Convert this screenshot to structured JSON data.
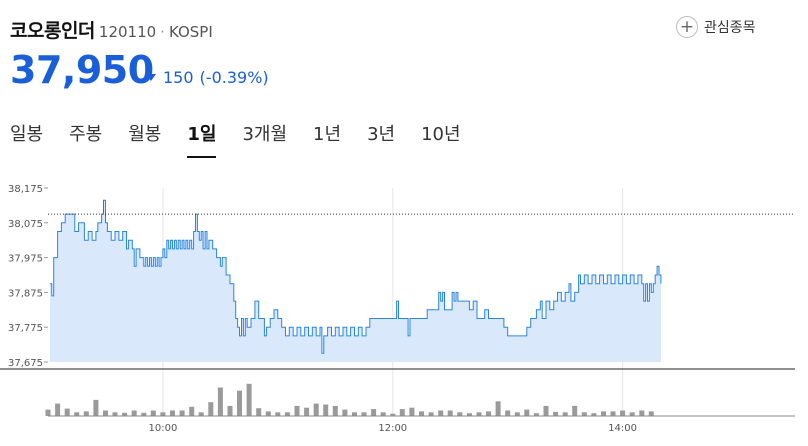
{
  "stock": {
    "name": "코오롱인더",
    "code": "120110",
    "separator": "·",
    "exchange": "KOSPI",
    "price": "37,950",
    "change_amount": "150",
    "change_percent": "(-0.39%)",
    "direction": "down",
    "down_color": "#1a5fd8"
  },
  "watch_button": {
    "label": "관심종목",
    "icon": "plus-icon"
  },
  "tabs": [
    {
      "label": "일봉",
      "active": false
    },
    {
      "label": "주봉",
      "active": false
    },
    {
      "label": "월봉",
      "active": false
    },
    {
      "label": "1일",
      "active": true
    },
    {
      "label": "3개월",
      "active": false
    },
    {
      "label": "1년",
      "active": false
    },
    {
      "label": "3년",
      "active": false
    },
    {
      "label": "10년",
      "active": false
    }
  ],
  "chart_data": {
    "type": "area",
    "ylim": [
      37675,
      38175
    ],
    "y_ticks": [
      "38,175",
      "38,075",
      "37,975",
      "37,875",
      "37,775",
      "37,675"
    ],
    "x_ticks": [
      "10:00",
      "12:00",
      "14:00"
    ],
    "x_range": [
      "09:00",
      "15:30"
    ],
    "reference_price": 38100,
    "grid": true,
    "line_color": "#2a86e0",
    "fill_color": "#d9e9fb",
    "up_color": "#e0334b",
    "volume_color": "#9a9a9a",
    "volume_ylim": [
      0,
      100
    ],
    "price_series": [
      {
        "t": "09:01",
        "p": 37900
      },
      {
        "t": "09:02",
        "p": 37865
      },
      {
        "t": "09:03",
        "p": 37975
      },
      {
        "t": "09:05",
        "p": 38050
      },
      {
        "t": "09:07",
        "p": 38075
      },
      {
        "t": "09:09",
        "p": 38100
      },
      {
        "t": "09:12",
        "p": 38100
      },
      {
        "t": "09:14",
        "p": 38050
      },
      {
        "t": "09:16",
        "p": 38075
      },
      {
        "t": "09:17",
        "p": 38075
      },
      {
        "t": "09:19",
        "p": 38025
      },
      {
        "t": "09:21",
        "p": 38050
      },
      {
        "t": "09:23",
        "p": 38025
      },
      {
        "t": "09:25",
        "p": 38050
      },
      {
        "t": "09:26",
        "p": 38075
      },
      {
        "t": "09:27",
        "p": 38075
      },
      {
        "t": "09:28",
        "p": 38100
      },
      {
        "t": "09:29",
        "p": 38140
      },
      {
        "t": "09:30",
        "p": 38075
      },
      {
        "t": "09:31",
        "p": 38050
      },
      {
        "t": "09:33",
        "p": 38025
      },
      {
        "t": "09:35",
        "p": 38050
      },
      {
        "t": "09:37",
        "p": 38025
      },
      {
        "t": "09:39",
        "p": 38050
      },
      {
        "t": "09:41",
        "p": 38000
      },
      {
        "t": "09:42",
        "p": 38025
      },
      {
        "t": "09:44",
        "p": 38000
      },
      {
        "t": "09:45",
        "p": 37950
      },
      {
        "t": "09:46",
        "p": 38000
      },
      {
        "t": "09:48",
        "p": 37975
      },
      {
        "t": "09:50",
        "p": 37950
      },
      {
        "t": "09:51",
        "p": 37975
      },
      {
        "t": "09:52",
        "p": 37950
      },
      {
        "t": "09:53",
        "p": 37975
      },
      {
        "t": "09:54",
        "p": 37950
      },
      {
        "t": "09:55",
        "p": 37975
      },
      {
        "t": "09:56",
        "p": 37950
      },
      {
        "t": "09:57",
        "p": 37975
      },
      {
        "t": "09:58",
        "p": 37950
      },
      {
        "t": "09:59",
        "p": 37975
      },
      {
        "t": "10:00",
        "p": 38000
      },
      {
        "t": "10:01",
        "p": 37975
      },
      {
        "t": "10:02",
        "p": 38025
      },
      {
        "t": "10:03",
        "p": 38000
      },
      {
        "t": "10:04",
        "p": 38025
      },
      {
        "t": "10:05",
        "p": 38000
      },
      {
        "t": "10:06",
        "p": 38025
      },
      {
        "t": "10:07",
        "p": 38000
      },
      {
        "t": "10:08",
        "p": 38025
      },
      {
        "t": "10:09",
        "p": 38000
      },
      {
        "t": "10:10",
        "p": 38025
      },
      {
        "t": "10:11",
        "p": 38000
      },
      {
        "t": "10:12",
        "p": 38025
      },
      {
        "t": "10:13",
        "p": 38000
      },
      {
        "t": "10:14",
        "p": 38025
      },
      {
        "t": "10:15",
        "p": 38000
      },
      {
        "t": "10:16",
        "p": 38050
      },
      {
        "t": "10:17",
        "p": 38100
      },
      {
        "t": "10:18",
        "p": 38050
      },
      {
        "t": "10:19",
        "p": 38025
      },
      {
        "t": "10:20",
        "p": 38050
      },
      {
        "t": "10:21",
        "p": 38000
      },
      {
        "t": "10:22",
        "p": 38050
      },
      {
        "t": "10:23",
        "p": 38000
      },
      {
        "t": "10:24",
        "p": 38025
      },
      {
        "t": "10:26",
        "p": 38000
      },
      {
        "t": "10:28",
        "p": 37975
      },
      {
        "t": "10:30",
        "p": 37950
      },
      {
        "t": "10:31",
        "p": 37975
      },
      {
        "t": "10:33",
        "p": 37925
      },
      {
        "t": "10:35",
        "p": 37900
      },
      {
        "t": "10:37",
        "p": 37850
      },
      {
        "t": "10:38",
        "p": 37800
      },
      {
        "t": "10:39",
        "p": 37775
      },
      {
        "t": "10:40",
        "p": 37750
      },
      {
        "t": "10:41",
        "p": 37800
      },
      {
        "t": "10:42",
        "p": 37750
      },
      {
        "t": "10:43",
        "p": 37800
      },
      {
        "t": "10:44",
        "p": 37775
      },
      {
        "t": "10:46",
        "p": 37800
      },
      {
        "t": "10:48",
        "p": 37850
      },
      {
        "t": "10:50",
        "p": 37800
      },
      {
        "t": "10:52",
        "p": 37800
      },
      {
        "t": "10:53",
        "p": 37750
      },
      {
        "t": "10:54",
        "p": 37775
      },
      {
        "t": "10:56",
        "p": 37800
      },
      {
        "t": "10:58",
        "p": 37825
      },
      {
        "t": "11:00",
        "p": 37800
      },
      {
        "t": "11:02",
        "p": 37775
      },
      {
        "t": "11:04",
        "p": 37750
      },
      {
        "t": "11:06",
        "p": 37775
      },
      {
        "t": "11:08",
        "p": 37750
      },
      {
        "t": "11:10",
        "p": 37775
      },
      {
        "t": "11:12",
        "p": 37750
      },
      {
        "t": "11:14",
        "p": 37775
      },
      {
        "t": "11:16",
        "p": 37750
      },
      {
        "t": "11:18",
        "p": 37775
      },
      {
        "t": "11:20",
        "p": 37750
      },
      {
        "t": "11:22",
        "p": 37775
      },
      {
        "t": "11:23",
        "p": 37700
      },
      {
        "t": "11:24",
        "p": 37750
      },
      {
        "t": "11:26",
        "p": 37775
      },
      {
        "t": "11:28",
        "p": 37750
      },
      {
        "t": "11:30",
        "p": 37775
      },
      {
        "t": "11:32",
        "p": 37750
      },
      {
        "t": "11:34",
        "p": 37775
      },
      {
        "t": "11:36",
        "p": 37750
      },
      {
        "t": "11:38",
        "p": 37775
      },
      {
        "t": "11:40",
        "p": 37750
      },
      {
        "t": "11:42",
        "p": 37775
      },
      {
        "t": "11:44",
        "p": 37750
      },
      {
        "t": "11:46",
        "p": 37775
      },
      {
        "t": "11:48",
        "p": 37800
      },
      {
        "t": "11:52",
        "p": 37800
      },
      {
        "t": "11:56",
        "p": 37800
      },
      {
        "t": "12:00",
        "p": 37800
      },
      {
        "t": "12:02",
        "p": 37850
      },
      {
        "t": "12:03",
        "p": 37800
      },
      {
        "t": "12:06",
        "p": 37800
      },
      {
        "t": "12:08",
        "p": 37750
      },
      {
        "t": "12:09",
        "p": 37800
      },
      {
        "t": "12:12",
        "p": 37800
      },
      {
        "t": "12:16",
        "p": 37800
      },
      {
        "t": "12:18",
        "p": 37825
      },
      {
        "t": "12:22",
        "p": 37825
      },
      {
        "t": "12:24",
        "p": 37875
      },
      {
        "t": "12:25",
        "p": 37850
      },
      {
        "t": "12:26",
        "p": 37875
      },
      {
        "t": "12:27",
        "p": 37825
      },
      {
        "t": "12:30",
        "p": 37825
      },
      {
        "t": "12:31",
        "p": 37875
      },
      {
        "t": "12:32",
        "p": 37850
      },
      {
        "t": "12:33",
        "p": 37875
      },
      {
        "t": "12:34",
        "p": 37850
      },
      {
        "t": "12:37",
        "p": 37850
      },
      {
        "t": "12:40",
        "p": 37825
      },
      {
        "t": "12:42",
        "p": 37850
      },
      {
        "t": "12:44",
        "p": 37800
      },
      {
        "t": "12:46",
        "p": 37800
      },
      {
        "t": "12:48",
        "p": 37825
      },
      {
        "t": "12:50",
        "p": 37800
      },
      {
        "t": "12:53",
        "p": 37800
      },
      {
        "t": "12:56",
        "p": 37800
      },
      {
        "t": "12:58",
        "p": 37775
      },
      {
        "t": "13:00",
        "p": 37750
      },
      {
        "t": "13:04",
        "p": 37750
      },
      {
        "t": "13:08",
        "p": 37750
      },
      {
        "t": "13:10",
        "p": 37775
      },
      {
        "t": "13:12",
        "p": 37800
      },
      {
        "t": "13:15",
        "p": 37825
      },
      {
        "t": "13:17",
        "p": 37850
      },
      {
        "t": "13:18",
        "p": 37800
      },
      {
        "t": "13:20",
        "p": 37850
      },
      {
        "t": "13:22",
        "p": 37825
      },
      {
        "t": "13:24",
        "p": 37850
      },
      {
        "t": "13:26",
        "p": 37875
      },
      {
        "t": "13:28",
        "p": 37850
      },
      {
        "t": "13:30",
        "p": 37875
      },
      {
        "t": "13:32",
        "p": 37900
      },
      {
        "t": "13:33",
        "p": 37850
      },
      {
        "t": "13:35",
        "p": 37875
      },
      {
        "t": "13:37",
        "p": 37925
      },
      {
        "t": "13:38",
        "p": 37900
      },
      {
        "t": "13:40",
        "p": 37925
      },
      {
        "t": "13:42",
        "p": 37900
      },
      {
        "t": "13:44",
        "p": 37925
      },
      {
        "t": "13:46",
        "p": 37900
      },
      {
        "t": "13:48",
        "p": 37925
      },
      {
        "t": "13:50",
        "p": 37900
      },
      {
        "t": "13:52",
        "p": 37925
      },
      {
        "t": "13:54",
        "p": 37900
      },
      {
        "t": "13:56",
        "p": 37925
      },
      {
        "t": "13:58",
        "p": 37900
      },
      {
        "t": "14:00",
        "p": 37925
      },
      {
        "t": "14:02",
        "p": 37900
      },
      {
        "t": "14:04",
        "p": 37925
      },
      {
        "t": "14:06",
        "p": 37900
      },
      {
        "t": "14:08",
        "p": 37925
      },
      {
        "t": "14:10",
        "p": 37900
      },
      {
        "t": "14:11",
        "p": 37850
      },
      {
        "t": "14:12",
        "p": 37900
      },
      {
        "t": "14:13",
        "p": 37850
      },
      {
        "t": "14:14",
        "p": 37900
      },
      {
        "t": "14:15",
        "p": 37875
      },
      {
        "t": "14:16",
        "p": 37900
      },
      {
        "t": "14:17",
        "p": 37925
      },
      {
        "t": "14:18",
        "p": 37950
      },
      {
        "t": "14:19",
        "p": 37925
      },
      {
        "t": "14:20",
        "p": 37900
      }
    ],
    "volume_series": [
      {
        "t": "09:00",
        "v": 14
      },
      {
        "t": "09:05",
        "v": 27
      },
      {
        "t": "09:10",
        "v": 16
      },
      {
        "t": "09:15",
        "v": 8
      },
      {
        "t": "09:20",
        "v": 10
      },
      {
        "t": "09:25",
        "v": 35
      },
      {
        "t": "09:30",
        "v": 12
      },
      {
        "t": "09:35",
        "v": 8
      },
      {
        "t": "09:40",
        "v": 7
      },
      {
        "t": "09:45",
        "v": 12
      },
      {
        "t": "09:50",
        "v": 7
      },
      {
        "t": "09:55",
        "v": 12
      },
      {
        "t": "10:00",
        "v": 8
      },
      {
        "t": "10:05",
        "v": 12
      },
      {
        "t": "10:10",
        "v": 12
      },
      {
        "t": "10:15",
        "v": 20
      },
      {
        "t": "10:20",
        "v": 8
      },
      {
        "t": "10:25",
        "v": 30
      },
      {
        "t": "10:30",
        "v": 62
      },
      {
        "t": "10:35",
        "v": 22
      },
      {
        "t": "10:40",
        "v": 55
      },
      {
        "t": "10:45",
        "v": 70
      },
      {
        "t": "10:50",
        "v": 17
      },
      {
        "t": "10:55",
        "v": 10
      },
      {
        "t": "11:00",
        "v": 8
      },
      {
        "t": "11:05",
        "v": 8
      },
      {
        "t": "11:10",
        "v": 22
      },
      {
        "t": "11:15",
        "v": 18
      },
      {
        "t": "11:20",
        "v": 27
      },
      {
        "t": "11:25",
        "v": 25
      },
      {
        "t": "11:30",
        "v": 22
      },
      {
        "t": "11:35",
        "v": 14
      },
      {
        "t": "11:40",
        "v": 8
      },
      {
        "t": "11:45",
        "v": 8
      },
      {
        "t": "11:50",
        "v": 15
      },
      {
        "t": "11:55",
        "v": 8
      },
      {
        "t": "12:00",
        "v": 5
      },
      {
        "t": "12:05",
        "v": 15
      },
      {
        "t": "12:10",
        "v": 18
      },
      {
        "t": "12:15",
        "v": 10
      },
      {
        "t": "12:20",
        "v": 8
      },
      {
        "t": "12:25",
        "v": 12
      },
      {
        "t": "12:30",
        "v": 12
      },
      {
        "t": "12:35",
        "v": 8
      },
      {
        "t": "12:40",
        "v": 6
      },
      {
        "t": "12:45",
        "v": 8
      },
      {
        "t": "12:50",
        "v": 10
      },
      {
        "t": "12:55",
        "v": 32
      },
      {
        "t": "13:00",
        "v": 12
      },
      {
        "t": "13:05",
        "v": 8
      },
      {
        "t": "13:10",
        "v": 14
      },
      {
        "t": "13:15",
        "v": 6
      },
      {
        "t": "13:20",
        "v": 22
      },
      {
        "t": "13:25",
        "v": 9
      },
      {
        "t": "13:30",
        "v": 8
      },
      {
        "t": "13:35",
        "v": 22
      },
      {
        "t": "13:40",
        "v": 8
      },
      {
        "t": "13:45",
        "v": 6
      },
      {
        "t": "13:50",
        "v": 10
      },
      {
        "t": "13:55",
        "v": 10
      },
      {
        "t": "14:00",
        "v": 12
      },
      {
        "t": "14:05",
        "v": 8
      },
      {
        "t": "14:10",
        "v": 12
      },
      {
        "t": "14:15",
        "v": 10
      }
    ]
  }
}
